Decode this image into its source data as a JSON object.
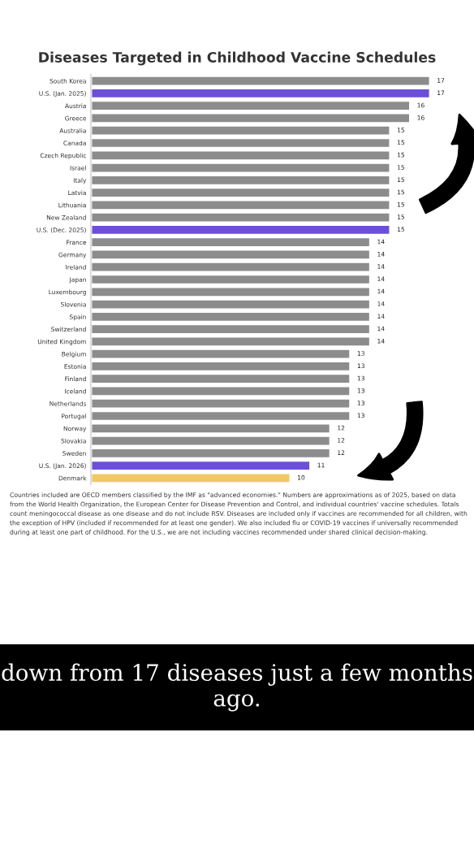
{
  "chart_data": {
    "type": "bar",
    "orientation": "horizontal",
    "title": "Diseases Targeted in Childhood Vaccine Schedules",
    "categories": [
      "South Korea",
      "U.S. (Jan. 2025)",
      "Austria",
      "Greece",
      "Australia",
      "Canada",
      "Czech Republic",
      "Israel",
      "Italy",
      "Latvia",
      "Lithuania",
      "New Zealand",
      "U.S. (Dec. 2025)",
      "France",
      "Germany",
      "Ireland",
      "Japan",
      "Luxembourg",
      "Slovenia",
      "Spain",
      "Switzerland",
      "United Kingdom",
      "Belgium",
      "Estonia",
      "Finland",
      "Iceland",
      "Netherlands",
      "Portugal",
      "Norway",
      "Slovakia",
      "Sweden",
      "U.S. (Jan. 2026)",
      "Denmark"
    ],
    "values": [
      17,
      17,
      16,
      16,
      15,
      15,
      15,
      15,
      15,
      15,
      15,
      15,
      15,
      14,
      14,
      14,
      14,
      14,
      14,
      14,
      14,
      14,
      13,
      13,
      13,
      13,
      13,
      13,
      12,
      12,
      12,
      11,
      10
    ],
    "colors": [
      "#8c8c8c",
      "#6b4fd8",
      "#8c8c8c",
      "#8c8c8c",
      "#8c8c8c",
      "#8c8c8c",
      "#8c8c8c",
      "#8c8c8c",
      "#8c8c8c",
      "#8c8c8c",
      "#8c8c8c",
      "#8c8c8c",
      "#6b4fd8",
      "#8c8c8c",
      "#8c8c8c",
      "#8c8c8c",
      "#8c8c8c",
      "#8c8c8c",
      "#8c8c8c",
      "#8c8c8c",
      "#8c8c8c",
      "#8c8c8c",
      "#8c8c8c",
      "#8c8c8c",
      "#8c8c8c",
      "#8c8c8c",
      "#8c8c8c",
      "#8c8c8c",
      "#8c8c8c",
      "#8c8c8c",
      "#8c8c8c",
      "#6b4fd8",
      "#f2c864"
    ],
    "data_labels": true,
    "tick_labels": "y",
    "grid": false,
    "legend": false,
    "annotations": [
      "Countries included are OECD members classified by the IMF as \"advanced economies.\" Numbers are approximations as of 2025, based on data from the World Health Organization, the European Center for Disease Prevention and Control, and individual countries' vaccine schedules. Totals count meningococcal disease as one disease and do not include RSV. Diseases are included only if vaccines are recommended for all children, with the exception of HPV (included if recommended for at least one gender). We also included flu or COVID-19 vaccines if universally recommended during at least one part of childhood. For the U.S., we are not including vaccines recommended under shared clinical decision-making.",
      "down from 17 diseases just a few months ago."
    ]
  }
}
